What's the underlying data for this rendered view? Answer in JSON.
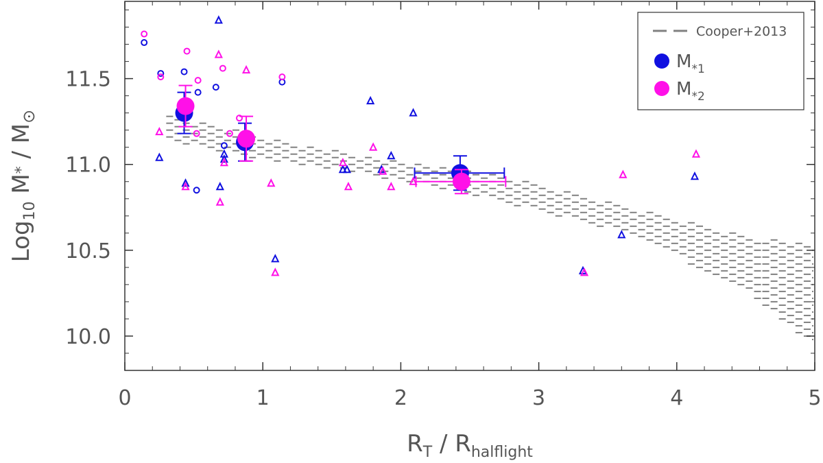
{
  "chart_data": {
    "type": "scatter",
    "xlim": [
      0,
      5
    ],
    "ylim": [
      9.8,
      11.95
    ],
    "x_ticks": [
      0,
      1,
      2,
      3,
      4,
      5
    ],
    "x_tick_labels": [
      "0",
      "1",
      "2",
      "3",
      "4",
      "5"
    ],
    "y_ticks": [
      10.0,
      10.5,
      11.0,
      11.5
    ],
    "y_tick_labels": [
      "10.0",
      "10.5",
      "11.0",
      "11.5"
    ],
    "xlabel": {
      "main": "R",
      "sub1": "T",
      "mid": " / R",
      "sub2": "halflight"
    },
    "ylabel": {
      "pre": "Log",
      "sub": "10",
      "mid": " M",
      "sup": "*",
      "post": " / M",
      "sym": "⊙"
    },
    "grid": false,
    "legend": {
      "position": "top-right",
      "entries": [
        {
          "label": "Cooper+2013",
          "style": "dashed",
          "color": "#808080"
        },
        {
          "label_main": "M",
          "label_sub": "*1",
          "style": "filled-circle",
          "color": "#1010e0"
        },
        {
          "label_main": "M",
          "label_sub": "*2",
          "style": "filled-circle",
          "color": "#ff10e8"
        }
      ]
    },
    "colors": {
      "m1": "#1010e0",
      "m2": "#ff10e8",
      "band": "#808080",
      "axis": "#333333"
    },
    "series": [
      {
        "name": "M*1",
        "color": "#1010e0",
        "circles": [
          [
            0.14,
            11.71
          ],
          [
            0.26,
            11.53
          ],
          [
            0.43,
            11.54
          ],
          [
            0.53,
            11.42
          ],
          [
            0.66,
            11.45
          ],
          [
            0.72,
            11.11
          ],
          [
            0.52,
            10.85
          ],
          [
            1.14,
            11.48
          ]
        ],
        "triangles": [
          [
            0.25,
            11.04
          ],
          [
            0.44,
            10.89
          ],
          [
            0.68,
            11.84
          ],
          [
            0.69,
            10.87
          ],
          [
            0.72,
            11.06
          ],
          [
            0.72,
            11.03
          ],
          [
            1.09,
            10.45
          ],
          [
            1.58,
            10.97
          ],
          [
            1.61,
            10.97
          ],
          [
            1.78,
            11.37
          ],
          [
            1.86,
            10.97
          ],
          [
            1.93,
            11.05
          ],
          [
            2.09,
            11.3
          ],
          [
            3.32,
            10.38
          ],
          [
            3.6,
            10.59
          ],
          [
            4.13,
            10.93
          ]
        ],
        "means": [
          {
            "x": 0.43,
            "y": 11.3,
            "yerr_lo": 0.12,
            "yerr_hi": 0.12
          },
          {
            "x": 0.87,
            "y": 11.13,
            "yerr_lo": 0.11,
            "yerr_hi": 0.11
          },
          {
            "x": 2.43,
            "y": 10.95,
            "yerr_lo": 0.1,
            "yerr_hi": 0.1,
            "xerr_lo": 0.33,
            "xerr_hi": 0.32
          }
        ]
      },
      {
        "name": "M*2",
        "color": "#ff10e8",
        "circles": [
          [
            0.14,
            11.76
          ],
          [
            0.26,
            11.51
          ],
          [
            0.45,
            11.66
          ],
          [
            0.53,
            11.49
          ],
          [
            0.52,
            11.18
          ],
          [
            0.71,
            11.56
          ],
          [
            0.76,
            11.18
          ],
          [
            0.83,
            11.27
          ],
          [
            1.14,
            11.51
          ]
        ],
        "triangles": [
          [
            0.25,
            11.19
          ],
          [
            0.44,
            10.87
          ],
          [
            0.68,
            11.64
          ],
          [
            0.69,
            10.78
          ],
          [
            0.72,
            11.01
          ],
          [
            0.88,
            11.55
          ],
          [
            1.06,
            10.89
          ],
          [
            1.09,
            10.37
          ],
          [
            1.58,
            11.01
          ],
          [
            1.62,
            10.87
          ],
          [
            1.8,
            11.1
          ],
          [
            1.87,
            10.96
          ],
          [
            1.93,
            10.87
          ],
          [
            2.09,
            10.9
          ],
          [
            3.33,
            10.37
          ],
          [
            3.61,
            10.94
          ],
          [
            4.14,
            11.06
          ]
        ],
        "means": [
          {
            "x": 0.44,
            "y": 11.34,
            "yerr_lo": 0.12,
            "yerr_hi": 0.12
          },
          {
            "x": 0.88,
            "y": 11.15,
            "yerr_lo": 0.13,
            "yerr_hi": 0.13
          },
          {
            "x": 2.44,
            "y": 10.9,
            "yerr_lo": 0.07,
            "yerr_hi": 0.07,
            "xerr_lo": 0.33,
            "xerr_hi": 0.32
          }
        ]
      }
    ],
    "band": {
      "name": "Cooper+2013",
      "x": [
        0.3,
        1.0,
        1.5,
        2.0,
        2.5,
        3.0,
        3.5,
        4.0,
        4.5,
        5.0
      ],
      "lower": [
        11.13,
        11.02,
        10.97,
        10.9,
        10.82,
        10.72,
        10.62,
        10.45,
        10.25,
        9.93
      ],
      "upper": [
        11.29,
        11.16,
        11.08,
        11.02,
        10.97,
        10.88,
        10.78,
        10.68,
        10.58,
        10.53
      ]
    }
  }
}
